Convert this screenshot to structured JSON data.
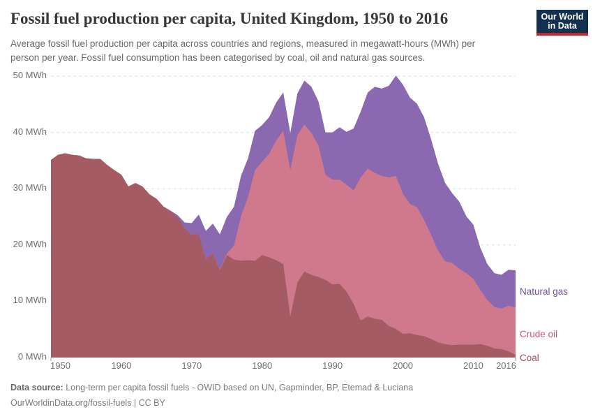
{
  "header": {
    "title": "Fossil fuel production per capita, United Kingdom, 1950 to 2016",
    "subtitle_line1": "Average fossil fuel production per capita across countries and regions, measured in megawatt-hours (MWh) per",
    "subtitle_line2": "person per year. Fossil fuel consumption has been categorised by coal, oil and natural gas sources."
  },
  "logo": {
    "line1": "Our World",
    "line2": "in Data",
    "bg_color": "#12304f",
    "stripe_color": "#c5262d"
  },
  "chart_data": {
    "type": "area",
    "stacked": true,
    "title": "Fossil fuel production per capita, United Kingdom, 1950 to 2016",
    "unit": "MWh per person per year",
    "xlim": [
      1950,
      2016
    ],
    "ylim": [
      0,
      50
    ],
    "x_ticks": [
      1950,
      1960,
      1970,
      1980,
      1990,
      2000,
      2010,
      2016
    ],
    "y_ticks": [
      0,
      10,
      20,
      30,
      40,
      50
    ],
    "y_tick_suffix": " MWh",
    "grid": "horizontal dashed",
    "grid_color": "#dcdcdc",
    "legend_position": "right",
    "years": [
      1950,
      1951,
      1952,
      1953,
      1954,
      1955,
      1956,
      1957,
      1958,
      1959,
      1960,
      1961,
      1962,
      1963,
      1964,
      1965,
      1966,
      1967,
      1968,
      1969,
      1970,
      1971,
      1972,
      1973,
      1974,
      1975,
      1976,
      1977,
      1978,
      1979,
      1980,
      1981,
      1982,
      1983,
      1984,
      1985,
      1986,
      1987,
      1988,
      1989,
      1990,
      1991,
      1992,
      1993,
      1994,
      1995,
      1996,
      1997,
      1998,
      1999,
      2000,
      2001,
      2002,
      2003,
      2004,
      2005,
      2006,
      2007,
      2008,
      2009,
      2010,
      2011,
      2012,
      2013,
      2014,
      2015,
      2016
    ],
    "series": [
      {
        "name": "Coal",
        "fill_color": "#a55b63",
        "label_color": "#9e515c",
        "values": [
          35.1,
          36.0,
          36.3,
          36.0,
          35.9,
          35.4,
          35.3,
          35.3,
          34.2,
          33.3,
          32.5,
          30.4,
          31.0,
          30.4,
          29.0,
          28.2,
          26.8,
          26.0,
          24.9,
          23.0,
          21.8,
          22.0,
          17.5,
          18.5,
          15.5,
          18.2,
          17.4,
          17.2,
          17.3,
          17.2,
          18.2,
          17.8,
          17.3,
          16.6,
          7.3,
          13.3,
          15.3,
          14.7,
          14.3,
          13.8,
          13.0,
          13.1,
          11.7,
          9.5,
          6.6,
          7.3,
          6.9,
          6.7,
          5.6,
          5.1,
          4.2,
          4.3,
          4.0,
          3.8,
          3.3,
          2.7,
          2.4,
          2.2,
          2.3,
          2.3,
          2.3,
          2.4,
          2.1,
          1.6,
          1.5,
          1.1,
          0.5
        ]
      },
      {
        "name": "Crude oil",
        "fill_color": "#d0788c",
        "label_color": "#c75577",
        "values": [
          0,
          0,
          0,
          0,
          0,
          0,
          0,
          0,
          0,
          0,
          0,
          0,
          0,
          0,
          0,
          0,
          0,
          0,
          0,
          0,
          0,
          0,
          0,
          0,
          0.1,
          0.3,
          2.5,
          7.9,
          11.2,
          16.1,
          16.6,
          18.4,
          21.3,
          23.7,
          26.0,
          26.2,
          26.1,
          25.2,
          23.4,
          18.7,
          18.6,
          18.5,
          19.0,
          20.2,
          25.4,
          26.3,
          25.9,
          25.6,
          26.4,
          27.2,
          24.9,
          23.0,
          22.7,
          20.7,
          18.5,
          16.3,
          14.7,
          14.6,
          13.5,
          12.7,
          11.7,
          9.6,
          8.1,
          7.4,
          7.2,
          8.1,
          8.4
        ]
      },
      {
        "name": "Natural gas",
        "fill_color": "#8a69b0",
        "label_color": "#7150a5",
        "values": [
          0,
          0,
          0,
          0,
          0,
          0,
          0,
          0,
          0,
          0,
          0,
          0,
          0,
          0,
          0,
          0,
          0,
          0.1,
          0.4,
          1.0,
          2.1,
          3.4,
          5.0,
          5.3,
          6.3,
          6.5,
          6.9,
          7.2,
          6.9,
          7.0,
          6.5,
          6.5,
          6.7,
          6.8,
          6.6,
          7.4,
          7.8,
          8.2,
          7.8,
          7.5,
          8.4,
          9.3,
          9.4,
          11.0,
          11.7,
          13.5,
          15.3,
          15.5,
          16.3,
          17.8,
          19.4,
          18.9,
          18.4,
          18.2,
          17.0,
          15.4,
          13.9,
          12.4,
          11.9,
          10.1,
          9.6,
          7.5,
          6.4,
          6.0,
          6.0,
          6.4,
          6.6
        ]
      }
    ]
  },
  "footer": {
    "source_label": "Data source:",
    "source_text": "Long-term per capita fossil fuels - OWID based on UN, Gapminder, BP, Etemad & Luciana",
    "license_line": "OurWorldinData.org/fossil-fuels | CC BY"
  }
}
